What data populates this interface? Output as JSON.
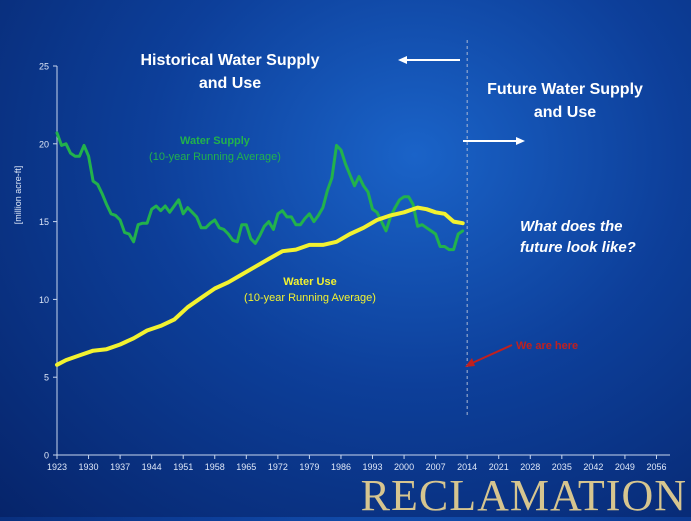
{
  "header": {
    "historical_title_line1": "Historical Water Supply",
    "historical_title_line2": "and Use",
    "future_title_line1": "Future Water Supply",
    "future_title_line2": "and Use",
    "question_line1": "What does the",
    "question_line2": "future look like?"
  },
  "logo": "RECLAMATION",
  "colors": {
    "supply": "#22b24c",
    "use": "#f2f230",
    "annotation": "#c0201e",
    "axis": "#c8d6ee"
  },
  "chart_data": {
    "type": "line",
    "ylabel": "[million acre-ft]",
    "xlim": [
      1923,
      2059
    ],
    "ylim": [
      0,
      25
    ],
    "yticks": [
      0,
      5,
      10,
      15,
      20,
      25
    ],
    "xticks": [
      1923,
      1930,
      1937,
      1944,
      1951,
      1958,
      1965,
      1972,
      1979,
      1986,
      1993,
      2000,
      2007,
      2014,
      2021,
      2028,
      2035,
      2042,
      2049,
      2056
    ],
    "series": [
      {
        "name": "Water Supply",
        "label_line1": "Water Supply",
        "label_line2": "(10-year Running Average)",
        "x": [
          1923,
          1924,
          1925,
          1926,
          1927,
          1928,
          1929,
          1930,
          1931,
          1932,
          1933,
          1934,
          1935,
          1936,
          1937,
          1938,
          1939,
          1940,
          1941,
          1942,
          1943,
          1944,
          1945,
          1946,
          1947,
          1948,
          1949,
          1950,
          1951,
          1952,
          1953,
          1954,
          1955,
          1956,
          1957,
          1958,
          1959,
          1960,
          1961,
          1962,
          1963,
          1964,
          1965,
          1966,
          1967,
          1968,
          1969,
          1970,
          1971,
          1972,
          1973,
          1974,
          1975,
          1976,
          1977,
          1978,
          1979,
          1980,
          1981,
          1982,
          1983,
          1984,
          1985,
          1986,
          1987,
          1988,
          1989,
          1990,
          1991,
          1992,
          1993,
          1994,
          1995,
          1996,
          1997,
          1998,
          1999,
          2000,
          2001,
          2002,
          2003,
          2004,
          2005,
          2006,
          2007,
          2008,
          2009,
          2010,
          2011,
          2012,
          2013
        ],
        "y": [
          20.7,
          19.9,
          20.0,
          19.4,
          19.2,
          19.2,
          19.9,
          19.2,
          17.6,
          17.4,
          16.8,
          16.1,
          15.5,
          15.4,
          15.1,
          14.3,
          14.2,
          13.7,
          14.8,
          14.9,
          14.9,
          15.8,
          16.0,
          15.7,
          16.0,
          15.6,
          16.0,
          16.4,
          15.5,
          15.9,
          15.6,
          15.3,
          14.6,
          14.6,
          14.9,
          15.1,
          14.6,
          14.5,
          14.2,
          13.8,
          13.7,
          14.8,
          14.8,
          13.9,
          13.6,
          14.1,
          14.7,
          15.0,
          14.5,
          15.5,
          15.7,
          15.3,
          15.3,
          14.8,
          14.8,
          15.2,
          15.5,
          15.0,
          15.4,
          15.9,
          17.0,
          17.8,
          19.9,
          19.6,
          18.7,
          18.0,
          17.3,
          17.9,
          17.3,
          16.9,
          15.8,
          15.6,
          15.0,
          14.4,
          15.3,
          15.9,
          16.4,
          16.6,
          16.6,
          16.1,
          14.7,
          14.8,
          14.6,
          14.4,
          14.2,
          13.4,
          13.4,
          13.2,
          13.2,
          14.2,
          14.4
        ]
      },
      {
        "name": "Water Use",
        "label_line1": "Water Use",
        "label_line2": "(10-year Running Average)",
        "x": [
          1923,
          1925,
          1928,
          1931,
          1934,
          1937,
          1940,
          1943,
          1946,
          1949,
          1952,
          1955,
          1958,
          1961,
          1964,
          1967,
          1970,
          1973,
          1976,
          1979,
          1982,
          1985,
          1988,
          1991,
          1994,
          1997,
          2000,
          2003,
          2005,
          2007,
          2009,
          2011,
          2013
        ],
        "y": [
          5.8,
          6.1,
          6.4,
          6.7,
          6.8,
          7.1,
          7.5,
          8.0,
          8.3,
          8.7,
          9.5,
          10.1,
          10.7,
          11.1,
          11.6,
          12.1,
          12.6,
          13.1,
          13.2,
          13.5,
          13.5,
          13.7,
          14.2,
          14.6,
          15.1,
          15.4,
          15.6,
          15.9,
          15.8,
          15.6,
          15.5,
          15.0,
          14.9
        ]
      }
    ],
    "divider_year": 2014,
    "annotation": {
      "text": "We are here",
      "x": 2014,
      "y": 5.8
    }
  }
}
